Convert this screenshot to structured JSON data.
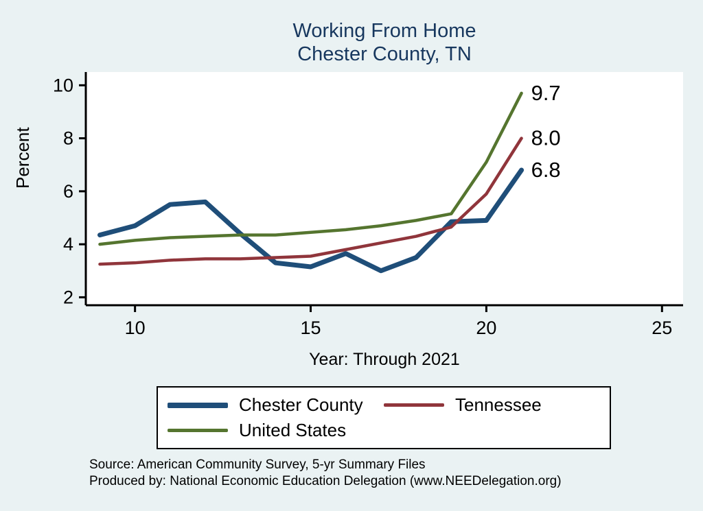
{
  "title": {
    "line1": "Working From Home",
    "line2": "Chester County, TN"
  },
  "axes": {
    "ylabel": "Percent",
    "xlabel": "Year: Through 2021",
    "x_ticks": [
      10,
      15,
      20,
      25
    ],
    "y_ticks": [
      2,
      4,
      6,
      8,
      10
    ],
    "x_range": [
      8.6,
      25.6
    ],
    "y_range": [
      1.7,
      10.5
    ]
  },
  "chart_data": {
    "type": "line",
    "title": "Working From Home — Chester County, TN",
    "xlabel": "Year: Through 2021",
    "ylabel": "Percent",
    "x": [
      9,
      10,
      11,
      12,
      13,
      14,
      15,
      16,
      17,
      18,
      19,
      20,
      21
    ],
    "xlim": [
      8.6,
      25.6
    ],
    "ylim": [
      1.7,
      10.5
    ],
    "grid": false,
    "legend_position": "bottom",
    "series": [
      {
        "name": "Chester County",
        "color": "#1f4e79",
        "end_label": "6.8",
        "values": [
          4.35,
          4.7,
          5.5,
          5.6,
          4.4,
          3.3,
          3.15,
          3.65,
          3.0,
          3.5,
          4.85,
          4.9,
          6.8
        ]
      },
      {
        "name": "Tennessee",
        "color": "#90353b",
        "end_label": "8.0",
        "values": [
          3.25,
          3.3,
          3.4,
          3.45,
          3.45,
          3.5,
          3.55,
          3.8,
          4.05,
          4.3,
          4.65,
          5.9,
          8.0
        ]
      },
      {
        "name": "United States",
        "color": "#55752f",
        "end_label": "9.7",
        "values": [
          4.0,
          4.15,
          4.25,
          4.3,
          4.35,
          4.35,
          4.45,
          4.55,
          4.7,
          4.9,
          5.15,
          7.1,
          9.7
        ]
      }
    ]
  },
  "legend": [
    {
      "label": "Chester County",
      "color": "#1f4e79"
    },
    {
      "label": "Tennessee",
      "color": "#90353b"
    },
    {
      "label": "United States",
      "color": "#55752f"
    }
  ],
  "footer": {
    "line1": "Source: American Community Survey, 5-yr Summary Files",
    "line2": "Produced by: National Economic Education Delegation (www.NEEDelegation.org)"
  },
  "colors": {
    "background": "#eaf2f3",
    "plot_background": "#ffffff",
    "title": "#17375e",
    "axis": "#000000"
  }
}
